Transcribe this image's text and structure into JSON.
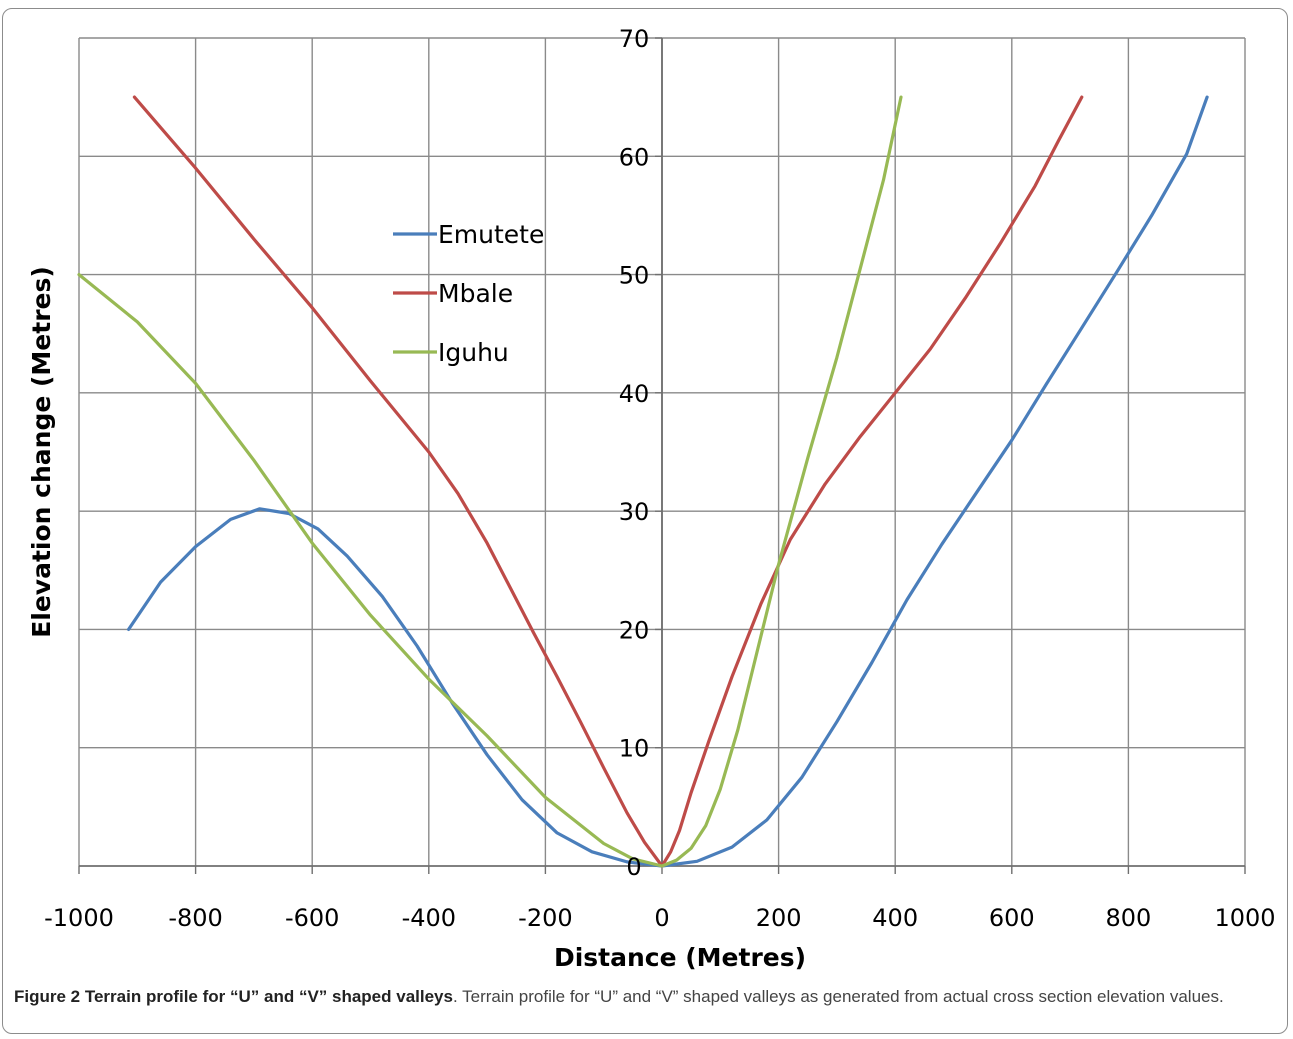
{
  "chart_data": {
    "type": "line",
    "title": "",
    "xlabel": "Distance (Metres)",
    "ylabel": "Elevation change (Metres)",
    "xlim": [
      -1000,
      1000
    ],
    "ylim": [
      0,
      70
    ],
    "x_ticks": [
      -1000,
      -800,
      -600,
      -400,
      -200,
      0,
      200,
      400,
      600,
      800,
      1000
    ],
    "y_ticks": [
      0,
      10,
      20,
      30,
      40,
      50,
      60,
      70
    ],
    "grid": true,
    "legend_position": "upper-center-left",
    "series": [
      {
        "name": "Emutete",
        "color": "#4a7ebb",
        "points": [
          [
            -915,
            20
          ],
          [
            -860,
            24
          ],
          [
            -800,
            27
          ],
          [
            -740,
            29.3
          ],
          [
            -690,
            30.2
          ],
          [
            -640,
            29.8
          ],
          [
            -590,
            28.5
          ],
          [
            -540,
            26.2
          ],
          [
            -480,
            22.8
          ],
          [
            -420,
            18.6
          ],
          [
            -360,
            13.8
          ],
          [
            -300,
            9.4
          ],
          [
            -240,
            5.6
          ],
          [
            -180,
            2.8
          ],
          [
            -120,
            1.2
          ],
          [
            -60,
            0.35
          ],
          [
            0,
            0
          ],
          [
            60,
            0.4
          ],
          [
            120,
            1.6
          ],
          [
            180,
            3.9
          ],
          [
            240,
            7.5
          ],
          [
            300,
            12.2
          ],
          [
            360,
            17.2
          ],
          [
            420,
            22.5
          ],
          [
            480,
            27.2
          ],
          [
            540,
            31.6
          ],
          [
            600,
            36
          ],
          [
            660,
            40.8
          ],
          [
            720,
            45.5
          ],
          [
            780,
            50.2
          ],
          [
            840,
            55
          ],
          [
            900,
            60.2
          ],
          [
            935,
            65
          ]
        ]
      },
      {
        "name": "Mbale",
        "color": "#be4b48",
        "points": [
          [
            -905,
            65
          ],
          [
            -800,
            59
          ],
          [
            -700,
            53
          ],
          [
            -600,
            47.2
          ],
          [
            -500,
            41
          ],
          [
            -400,
            35
          ],
          [
            -350,
            31.5
          ],
          [
            -300,
            27.3
          ],
          [
            -260,
            23.5
          ],
          [
            -220,
            19.7
          ],
          [
            -180,
            16
          ],
          [
            -140,
            12.2
          ],
          [
            -100,
            8.3
          ],
          [
            -60,
            4.5
          ],
          [
            -30,
            2
          ],
          [
            0,
            0
          ],
          [
            15,
            1.2
          ],
          [
            30,
            3
          ],
          [
            50,
            6.2
          ],
          [
            80,
            10.5
          ],
          [
            120,
            16
          ],
          [
            170,
            22.2
          ],
          [
            220,
            27.6
          ],
          [
            280,
            32.3
          ],
          [
            340,
            36.3
          ],
          [
            400,
            40
          ],
          [
            460,
            43.7
          ],
          [
            520,
            48
          ],
          [
            580,
            52.6
          ],
          [
            640,
            57.5
          ],
          [
            680,
            61.3
          ],
          [
            720,
            65
          ]
        ]
      },
      {
        "name": "Iguhu",
        "color": "#98b954",
        "points": [
          [
            -1000,
            50
          ],
          [
            -900,
            46
          ],
          [
            -800,
            40.8
          ],
          [
            -700,
            34.3
          ],
          [
            -600,
            27.3
          ],
          [
            -500,
            21.2
          ],
          [
            -400,
            15.8
          ],
          [
            -300,
            11
          ],
          [
            -200,
            5.8
          ],
          [
            -100,
            1.9
          ],
          [
            -50,
            0.6
          ],
          [
            0,
            0
          ],
          [
            25,
            0.5
          ],
          [
            50,
            1.5
          ],
          [
            75,
            3.4
          ],
          [
            100,
            6.5
          ],
          [
            130,
            11.5
          ],
          [
            160,
            17.5
          ],
          [
            200,
            25.5
          ],
          [
            250,
            34.5
          ],
          [
            300,
            43
          ],
          [
            340,
            50.5
          ],
          [
            380,
            58
          ],
          [
            410,
            65
          ]
        ]
      }
    ]
  },
  "caption": {
    "title": "Figure 2 Terrain profile for “U” and “V” shaped valleys",
    "text": ". Terrain profile for “U” and “V” shaped valleys as generated from actual cross section elevation values."
  }
}
